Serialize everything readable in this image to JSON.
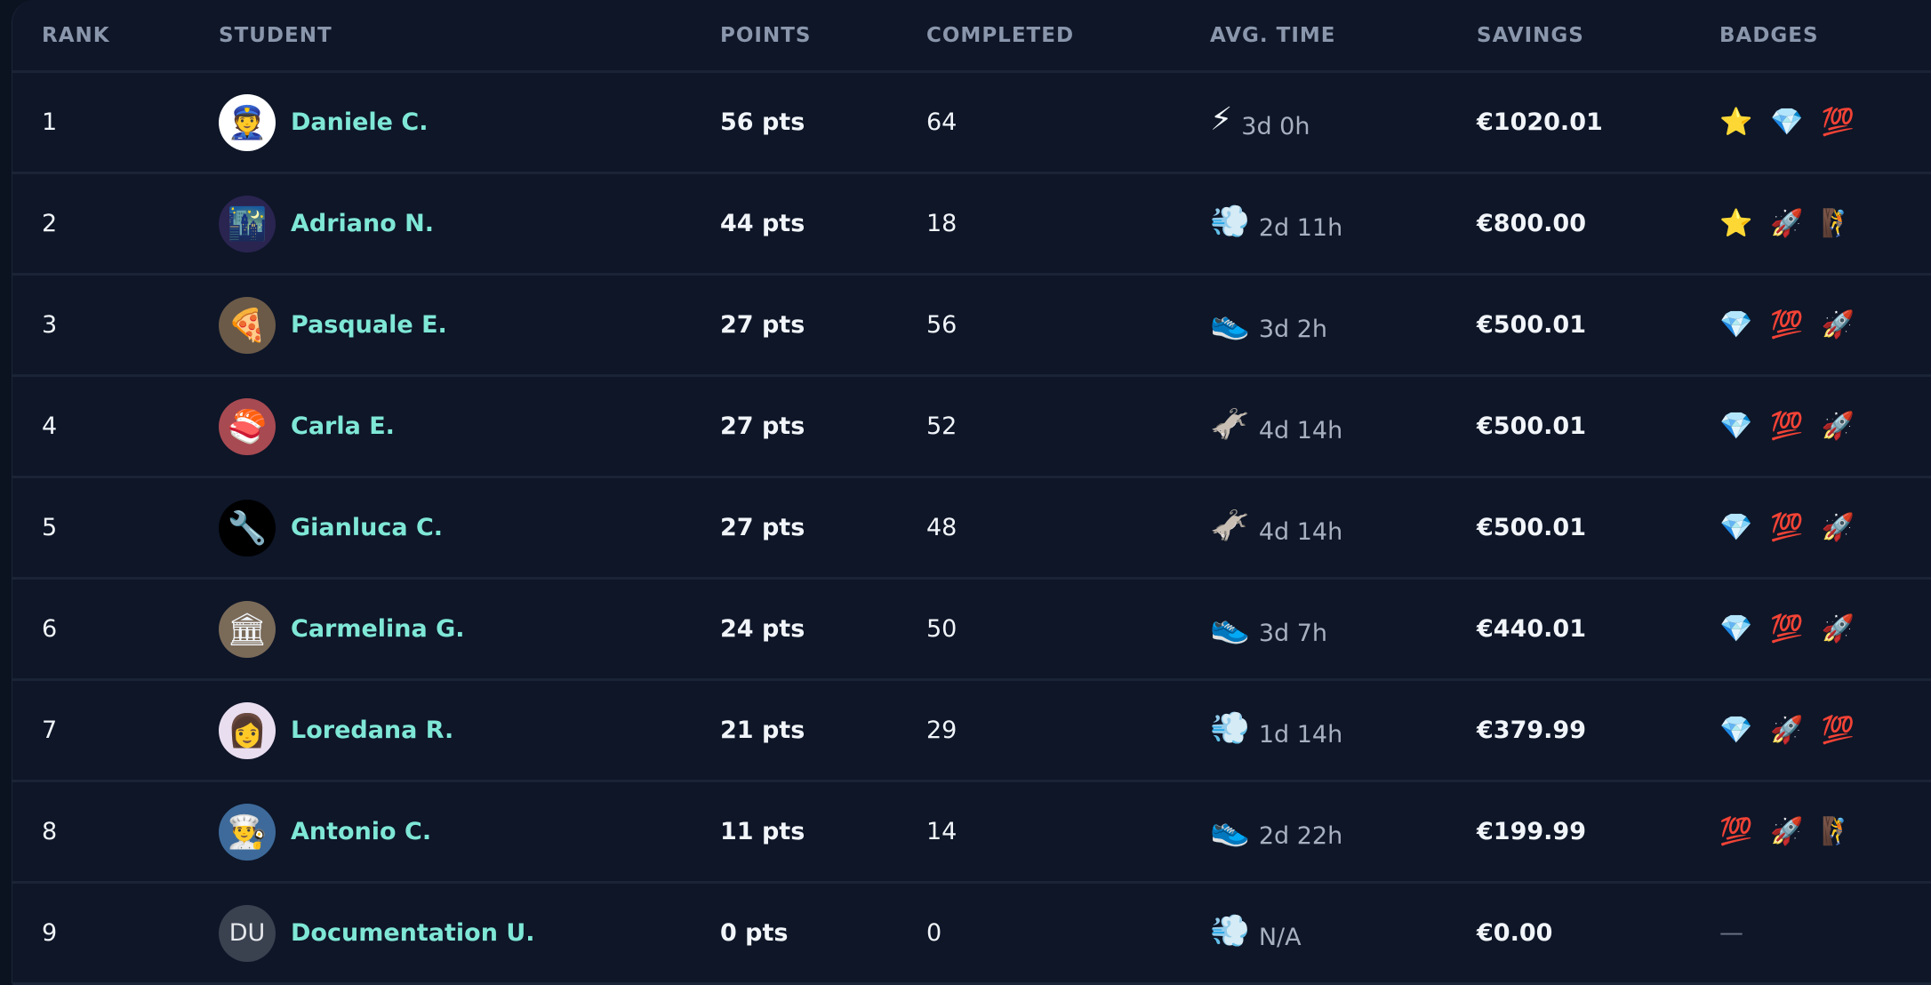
{
  "headers": {
    "rank": "RANK",
    "student": "STUDENT",
    "points": "POINTS",
    "completed": "COMPLETED",
    "avg_time": "AVG. TIME",
    "savings": "SAVINGS",
    "badges": "BADGES"
  },
  "colors": {
    "background": "#0e1628",
    "name": "#7fe7d6",
    "savings": "#4fdca6",
    "header": "#8a96ab"
  },
  "rows": [
    {
      "rank": "1",
      "name": "Daniele C.",
      "avatar": "👮",
      "avatar_bg": "#ffffff",
      "points": "56 pts",
      "completed": "64",
      "time_icon": "⚡",
      "avg_time": "3d 0h",
      "savings": "€1020.01",
      "badges": [
        "⭐",
        "💎",
        "💯"
      ]
    },
    {
      "rank": "2",
      "name": "Adriano N.",
      "avatar": "🌃",
      "avatar_bg": "#2a2450",
      "points": "44 pts",
      "completed": "18",
      "time_icon": "💨",
      "avg_time": "2d 11h",
      "savings": "€800.00",
      "badges": [
        "⭐",
        "🚀",
        "🧗"
      ]
    },
    {
      "rank": "3",
      "name": "Pasquale E.",
      "avatar": "🍕",
      "avatar_bg": "#6b5a48",
      "points": "27 pts",
      "completed": "56",
      "time_icon": "👟",
      "avg_time": "3d 2h",
      "savings": "€500.01",
      "badges": [
        "💎",
        "💯",
        "🚀"
      ]
    },
    {
      "rank": "4",
      "name": "Carla E.",
      "avatar": "🍣",
      "avatar_bg": "#a84a52",
      "points": "27 pts",
      "completed": "52",
      "time_icon": "🫏",
      "avg_time": "4d 14h",
      "savings": "€500.01",
      "badges": [
        "💎",
        "💯",
        "🚀"
      ]
    },
    {
      "rank": "5",
      "name": "Gianluca C.",
      "avatar": "🔧",
      "avatar_bg": "#000000",
      "points": "27 pts",
      "completed": "48",
      "time_icon": "🫏",
      "avg_time": "4d 14h",
      "savings": "€500.01",
      "badges": [
        "💎",
        "💯",
        "🚀"
      ]
    },
    {
      "rank": "6",
      "name": "Carmelina G.",
      "avatar": "🏛",
      "avatar_bg": "#7a6a58",
      "points": "24 pts",
      "completed": "50",
      "time_icon": "👟",
      "avg_time": "3d 7h",
      "savings": "€440.01",
      "badges": [
        "💎",
        "💯",
        "🚀"
      ]
    },
    {
      "rank": "7",
      "name": "Loredana R.",
      "avatar": "👩",
      "avatar_bg": "#e9def0",
      "points": "21 pts",
      "completed": "29",
      "time_icon": "💨",
      "avg_time": "1d 14h",
      "savings": "€379.99",
      "badges": [
        "💎",
        "🚀",
        "💯"
      ]
    },
    {
      "rank": "8",
      "name": "Antonio C.",
      "avatar": "👨‍🍳",
      "avatar_bg": "#3d6a9a",
      "points": "11 pts",
      "completed": "14",
      "time_icon": "👟",
      "avg_time": "2d 22h",
      "savings": "€199.99",
      "badges": [
        "💯",
        "🚀",
        "🧗"
      ]
    },
    {
      "rank": "9",
      "name": "Documentation U.",
      "avatar": "DU",
      "avatar_bg": "#3a4250",
      "points": "0 pts",
      "completed": "0",
      "time_icon": "💨",
      "avg_time": "N/A",
      "savings": "€0.00",
      "badges": [],
      "badges_empty": "—"
    }
  ]
}
